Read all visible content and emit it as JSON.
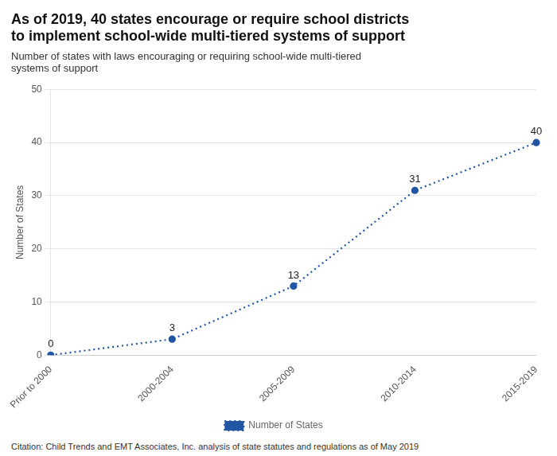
{
  "chart_data": {
    "type": "line",
    "title": [
      "As of 2019, 40 states encourage or require school districts",
      "to implement school-wide multi-tiered systems of support"
    ],
    "subtitle": [
      "Number of states with laws encouraging or requiring school-wide multi-tiered",
      "systems of support"
    ],
    "categories": [
      "Prior to 2000",
      "2000-2004",
      "2005-2009",
      "2010-2014",
      "2015-2019"
    ],
    "series": [
      {
        "name": "Number of States",
        "color": "#2255a4",
        "values": [
          0,
          3,
          13,
          31,
          40
        ]
      }
    ],
    "ylabel": "Number of States",
    "ylim": [
      0,
      50
    ],
    "yticks": [
      0,
      10,
      20,
      30,
      40,
      50
    ],
    "grid": true,
    "legend": "bottom",
    "data_labels": true,
    "marker": "circle",
    "line_style": "dotted",
    "annotations": [
      "Citation: Child Trends and EMT Associates, Inc. analysis of state statutes and regulations as of May 2019"
    ]
  }
}
